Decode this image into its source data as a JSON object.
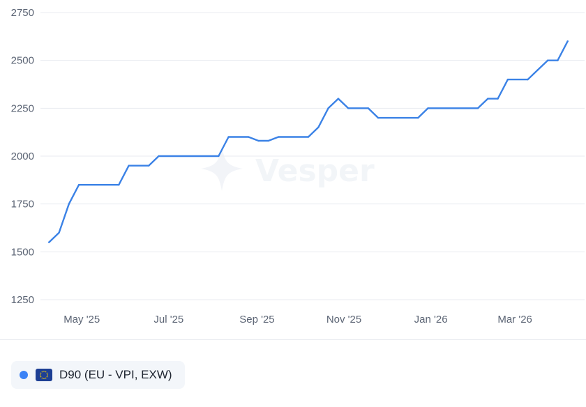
{
  "colors": {
    "line": "#3b82e6",
    "legend_dot": "#3b82f6",
    "flag_bg": "#1d3f94",
    "flag_stars": "#ffd100",
    "grid": "#e8ebf0",
    "tick_text": "#5b6474"
  },
  "watermark": {
    "text": "Vesper",
    "icon": "sparkle-star-icon"
  },
  "legend": {
    "flag_icon": "eu-flag-icon",
    "label": "D90 (EU - VPI, EXW)"
  },
  "chart_data": {
    "type": "line",
    "title": "",
    "xlabel": "",
    "ylabel": "",
    "ylim": [
      1250,
      2750
    ],
    "yticks": [
      1250,
      1500,
      1750,
      2000,
      2250,
      2500,
      2750
    ],
    "xlim": [
      "2025-04-02",
      "2026-04-14"
    ],
    "xticks": [
      {
        "date": "2025-05-01",
        "label": "May '25"
      },
      {
        "date": "2025-07-01",
        "label": "Jul '25"
      },
      {
        "date": "2025-09-01",
        "label": "Sep '25"
      },
      {
        "date": "2025-11-01",
        "label": "Nov '25"
      },
      {
        "date": "2026-01-01",
        "label": "Jan '26"
      },
      {
        "date": "2026-03-01",
        "label": "Mar '26"
      }
    ],
    "grid": true,
    "legend_position": "bottom-left",
    "series": [
      {
        "name": "D90 (EU - VPI, EXW)",
        "points": [
          {
            "x": "2025-04-08",
            "y": 1550
          },
          {
            "x": "2025-04-15",
            "y": 1600
          },
          {
            "x": "2025-04-22",
            "y": 1750
          },
          {
            "x": "2025-04-29",
            "y": 1850
          },
          {
            "x": "2025-05-27",
            "y": 1850
          },
          {
            "x": "2025-06-03",
            "y": 1950
          },
          {
            "x": "2025-06-17",
            "y": 1950
          },
          {
            "x": "2025-06-24",
            "y": 2000
          },
          {
            "x": "2025-08-05",
            "y": 2000
          },
          {
            "x": "2025-08-12",
            "y": 2100
          },
          {
            "x": "2025-08-26",
            "y": 2100
          },
          {
            "x": "2025-09-02",
            "y": 2080
          },
          {
            "x": "2025-09-09",
            "y": 2080
          },
          {
            "x": "2025-09-16",
            "y": 2100
          },
          {
            "x": "2025-10-07",
            "y": 2100
          },
          {
            "x": "2025-10-14",
            "y": 2150
          },
          {
            "x": "2025-10-21",
            "y": 2250
          },
          {
            "x": "2025-10-28",
            "y": 2300
          },
          {
            "x": "2025-11-04",
            "y": 2250
          },
          {
            "x": "2025-11-18",
            "y": 2250
          },
          {
            "x": "2025-11-25",
            "y": 2200
          },
          {
            "x": "2025-12-23",
            "y": 2200
          },
          {
            "x": "2025-12-30",
            "y": 2250
          },
          {
            "x": "2026-02-03",
            "y": 2250
          },
          {
            "x": "2026-02-10",
            "y": 2300
          },
          {
            "x": "2026-02-17",
            "y": 2300
          },
          {
            "x": "2026-02-24",
            "y": 2400
          },
          {
            "x": "2026-03-10",
            "y": 2400
          },
          {
            "x": "2026-03-17",
            "y": 2450
          },
          {
            "x": "2026-03-24",
            "y": 2500
          },
          {
            "x": "2026-03-31",
            "y": 2500
          },
          {
            "x": "2026-04-07",
            "y": 2600
          }
        ]
      }
    ]
  }
}
